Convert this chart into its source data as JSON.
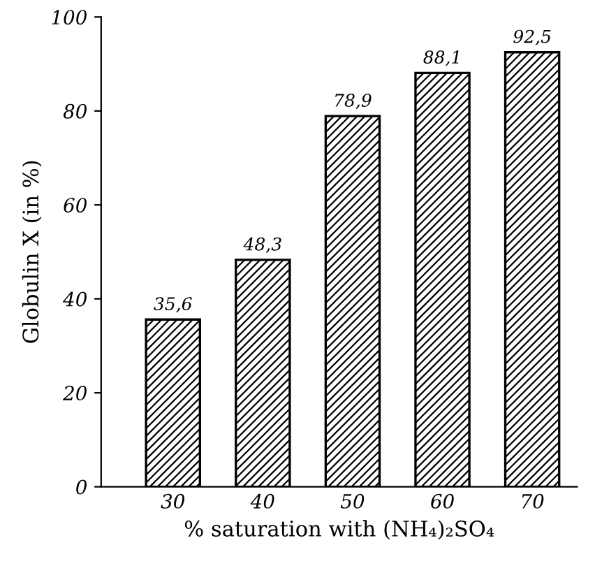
{
  "chart_data": {
    "type": "bar",
    "xlabel": "% saturation with (NH₄)₂SO₄",
    "ylabel": "Globulin X (in %)",
    "categories": [
      "30",
      "40",
      "50",
      "60",
      "70"
    ],
    "values": [
      35.6,
      48.3,
      78.9,
      88.1,
      92.5
    ],
    "value_labels": [
      "35,6",
      "48,3",
      "78,9",
      "88,1",
      "92,5"
    ],
    "color": "#000000",
    "ylim": [
      0,
      100
    ],
    "yticks": [
      0,
      20,
      40,
      60,
      80,
      100
    ],
    "grid": false
  }
}
